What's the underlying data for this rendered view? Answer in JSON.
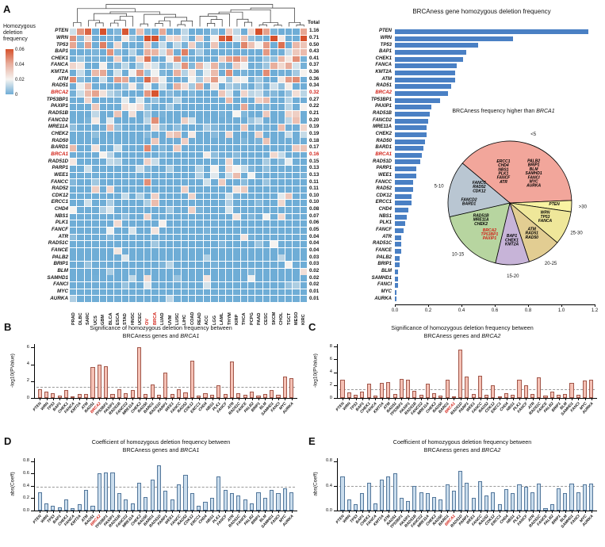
{
  "panel_letters": {
    "a": "A",
    "b": "B",
    "c": "C",
    "d": "D",
    "e": "E"
  },
  "red_axis_genes": [
    "BRCA1",
    "BRCA2"
  ],
  "red_cancer_types": [
    "OV",
    "BRCA"
  ],
  "chart_data": [
    {
      "name": "heatmap",
      "type": "heatmap",
      "legend_title": "Homozygous deletion frequency",
      "legend_ticks": [
        "0.06",
        "0.04",
        "0.02",
        "0"
      ],
      "total_header": "Total",
      "rows": [
        "PTEN",
        "WRN",
        "TP53",
        "BAP1",
        "CHEK1",
        "FANCA",
        "KMT2A",
        "ATM",
        "RAD51",
        "BRCA2",
        "TP53BP1",
        "PAXIP1",
        "RAD51B",
        "FANCD2",
        "MRE11A",
        "CHEK2",
        "RAD50",
        "BARD1",
        "BRCA1",
        "RAD51D",
        "PARP1",
        "WEE1",
        "FANCC",
        "RAD52",
        "CDK12",
        "ERCC1",
        "CHD4",
        "NBS1",
        "PLK1",
        "FANCF",
        "ATR",
        "RAD51C",
        "FANCE",
        "PALB2",
        "BRIP1",
        "BLM",
        "SAMHD1",
        "FANCI",
        "MYC",
        "AURKA"
      ],
      "columns": [
        "PRAD",
        "DLBC",
        "SARC",
        "UCS",
        "GBM",
        "BLCA",
        "ESCA",
        "STAD",
        "HNSC",
        "UCEC",
        "OV",
        "BRCA",
        "LUAD",
        "UVM",
        "LUSC",
        "LIHC",
        "COAD",
        "READ",
        "ACC",
        "LGG",
        "LAML",
        "THYM",
        "KIRP",
        "THCA",
        "PCPG",
        "PAAD",
        "CESC",
        "SKCM",
        "CHOL",
        "TGCT",
        "MESO",
        "KIRC"
      ],
      "row_totals": [
        1.16,
        0.71,
        0.5,
        0.43,
        0.41,
        0.37,
        0.36,
        0.36,
        0.34,
        0.32,
        0.27,
        0.22,
        0.21,
        0.2,
        0.19,
        0.19,
        0.18,
        0.17,
        0.16,
        0.15,
        0.13,
        0.13,
        0.11,
        0.11,
        0.1,
        0.1,
        0.08,
        0.07,
        0.06,
        0.05,
        0.04,
        0.04,
        0.04,
        0.03,
        0.03,
        0.02,
        0.02,
        0.02,
        0.01,
        0.01
      ],
      "color_low": "#6fadd6",
      "color_mid": "#f6f4f1",
      "color_high": "#d6512c",
      "value_range": [
        0,
        0.06
      ]
    },
    {
      "name": "freq_bar",
      "type": "bar",
      "orientation": "horizontal",
      "title": "BRCAness gene homozygous deletion frequency",
      "categories": [
        "PTEN",
        "WRN",
        "TP53",
        "BAP1",
        "CHEK1",
        "FANCA",
        "KMT2A",
        "ATM",
        "RAD51",
        "BRCA2",
        "TP53BP1",
        "PAXIP1",
        "RAD51B",
        "FANCD2",
        "MRE11A",
        "CHEK2",
        "RAD50",
        "BARD1",
        "BRCA1",
        "RAD51D",
        "PARP1",
        "WEE1",
        "FANCC",
        "RAD52",
        "CDK12",
        "ERCC1",
        "CHD4",
        "NBS1",
        "PLK1",
        "FANCF",
        "ATR",
        "RAD51C",
        "FANCE",
        "PALB2",
        "BRIP1",
        "BLM",
        "SAMHD1",
        "FANCI",
        "MYC",
        "AURKA"
      ],
      "values": [
        1.16,
        0.71,
        0.5,
        0.43,
        0.41,
        0.37,
        0.36,
        0.36,
        0.34,
        0.32,
        0.27,
        0.22,
        0.21,
        0.2,
        0.19,
        0.19,
        0.18,
        0.17,
        0.16,
        0.15,
        0.13,
        0.13,
        0.11,
        0.11,
        0.1,
        0.1,
        0.08,
        0.07,
        0.06,
        0.05,
        0.04,
        0.04,
        0.04,
        0.03,
        0.03,
        0.02,
        0.02,
        0.02,
        0.01,
        0.01
      ],
      "xlim": [
        0,
        1.2
      ],
      "x_ticks": [
        0,
        0.2,
        0.4,
        0.6,
        0.8,
        1.0,
        1.2
      ],
      "bar_color": "#4a80c4"
    },
    {
      "name": "pie",
      "type": "pie",
      "title_prefix": "BRCAness  frequency higher than",
      "title_gene": "BRCA1",
      "start_angle": -50,
      "red_genes": [
        "BRCA2",
        "TP53BP1",
        "PAXIP1"
      ],
      "slices": [
        {
          "bin": "<5",
          "count": 13,
          "color": "#f2a69b",
          "blocks": [
            {
              "genes": [
                "ERCC1",
                "CHD4",
                "NBS1",
                "PLK1",
                "FANCF",
                "ATR"
              ],
              "angle": -12,
              "r": 0.5
            },
            {
              "genes": [
                "PALB2",
                "BRIP1",
                "BLM",
                "SAMHD1",
                "FANCI",
                "MYC",
                "AURKA"
              ],
              "angle": 40,
              "r": 0.6
            }
          ]
        },
        {
          "bin": ">30",
          "count": 1,
          "color": "#f9f3a2",
          "blocks": [
            {
              "genes": [
                "PTEN"
              ],
              "angle": 93,
              "r": 0.72
            }
          ]
        },
        {
          "bin": "25-30",
          "count": 3,
          "color": "#efe79a",
          "blocks": [
            {
              "genes": [
                "WRN",
                "TP53",
                "FANCA"
              ],
              "angle": 113,
              "r": 0.62
            }
          ]
        },
        {
          "bin": "20-25",
          "count": 3,
          "color": "#e2cd92",
          "blocks": [
            {
              "genes": [
                "ATM",
                "RAD51",
                "RAD50"
              ],
              "angle": 145,
              "r": 0.62
            }
          ]
        },
        {
          "bin": "15-20",
          "count": 3,
          "color": "#c7b4d8",
          "blocks": [
            {
              "genes": [
                "BAP1",
                "CHEK1",
                "KMT2A"
              ],
              "angle": 177,
              "r": 0.62
            }
          ]
        },
        {
          "bin": "10-15",
          "count": 6,
          "color": "#b7d5a0",
          "blocks": [
            {
              "genes": [
                "BRCA2",
                "TP53BP1",
                "PAXIP1"
              ],
              "angle": 212,
              "r": 0.62
            },
            {
              "genes": [
                "RAD51B",
                "MRE11A",
                "CHEK2"
              ],
              "angle": 238,
              "r": 0.55
            }
          ]
        },
        {
          "bin": "5-10",
          "count": 5,
          "color": "#b9c6d2",
          "blocks": [
            {
              "genes": [
                "FANCD2",
                "BARD1"
              ],
              "angle": 270,
              "r": 0.66
            },
            {
              "genes": [
                "FANCC",
                "RAD52",
                "CDK12"
              ],
              "angle": 296,
              "r": 0.55
            }
          ]
        }
      ]
    },
    {
      "name": "sig_brca1",
      "type": "bar",
      "panel": "B",
      "title_prefix": "Significance of homozygous deletion frequency between",
      "title_sub": "BRCAness genes and",
      "title_gene": "BRCA1",
      "ylabel": "-log10(PValue)",
      "y_ticks": [
        0,
        2,
        4,
        6
      ],
      "ylim": [
        0,
        6.4
      ],
      "threshold": 1.3,
      "highlight_gene": "BRCA2",
      "bar_fill": "#f5c1b5",
      "bar_stroke": "#a2574a",
      "categories": [
        "PTEN",
        "WRN",
        "TP53",
        "BAP1",
        "CHEK1",
        "FANCA",
        "KMT2A",
        "ATM",
        "RAD51",
        "BRCA2",
        "TP53BP1",
        "PAXIP1",
        "RAD51B",
        "FANCD2",
        "MRE11A",
        "CHEK2",
        "RAD50",
        "BARD1",
        "RAD51D",
        "PARP1",
        "WEE1",
        "FANCC",
        "RAD52",
        "CDK12",
        "ERCC1",
        "CHD4",
        "NBS1",
        "PLK1",
        "FANCF",
        "ATR",
        "RAD51C",
        "FANCE",
        "PALB2",
        "BRIP1",
        "BLM",
        "SAMHD1",
        "FANCI",
        "MYC",
        "AURKA"
      ],
      "values": [
        1.05,
        0.8,
        0.55,
        0.3,
        0.9,
        0.2,
        0.45,
        0.5,
        3.7,
        4.0,
        3.8,
        0.45,
        1.05,
        0.6,
        0.9,
        6.0,
        0.5,
        1.6,
        0.35,
        3.0,
        0.45,
        1.0,
        0.7,
        4.4,
        0.3,
        0.6,
        0.4,
        1.5,
        0.5,
        4.3,
        0.6,
        0.4,
        0.8,
        0.3,
        0.5,
        0.9,
        0.4,
        2.5,
        2.4
      ]
    },
    {
      "name": "sig_brca2",
      "type": "bar",
      "panel": "C",
      "title_prefix": "Significance of homozygous deletion frequency between",
      "title_sub": "BRCAness genes and",
      "title_gene": "BRCA2",
      "ylabel": "-log10(PValue)",
      "y_ticks": [
        0,
        2,
        4,
        6,
        8
      ],
      "ylim": [
        0,
        8.4
      ],
      "threshold": 1.3,
      "highlight_gene": "BRCA1",
      "bar_fill": "#f5c1b5",
      "bar_stroke": "#a2574a",
      "categories": [
        "PTEN",
        "WRN",
        "TP53",
        "BAP1",
        "CHEK1",
        "FANCA",
        "KMT2A",
        "ATM",
        "RAD51",
        "TP53BP1",
        "PAXIP1",
        "RAD51B",
        "FANCD2",
        "MRE11A",
        "CHEK2",
        "RAD50",
        "BARD1",
        "BRCA1",
        "RAD51D",
        "PARP1",
        "WEE1",
        "FANCC",
        "RAD52",
        "CDK12",
        "ERCC1",
        "CHD4",
        "NBS1",
        "PLK1",
        "FANCF",
        "ATR",
        "RAD51C",
        "FANCE",
        "PALB2",
        "BRIP1",
        "BLM",
        "SAMHD1",
        "FANCI",
        "MYC",
        "AURKA"
      ],
      "values": [
        2.8,
        0.9,
        0.5,
        1.0,
        2.2,
        0.4,
        2.4,
        2.5,
        0.6,
        3.0,
        2.9,
        1.1,
        0.5,
        2.2,
        0.8,
        0.4,
        2.9,
        0.3,
        7.5,
        3.3,
        0.6,
        3.4,
        0.5,
        2.0,
        0.3,
        0.7,
        0.5,
        2.8,
        2.0,
        0.6,
        3.2,
        0.4,
        1.0,
        0.5,
        0.6,
        2.4,
        0.5,
        2.7,
        2.8
      ]
    },
    {
      "name": "coef_brca1",
      "type": "bar",
      "panel": "D",
      "title_prefix": "Coefficient of homozygous deletion frequency between",
      "title_sub": "BRCAness genes and",
      "title_gene": "BRCA1",
      "ylabel": "abs(Coeff)",
      "y_ticks": [
        "0.0",
        "0.2",
        "0.4",
        "0.6",
        "0.8"
      ],
      "ylim": [
        0,
        0.85
      ],
      "threshold": 0.38,
      "highlight_gene": "BRCA2",
      "bar_fill": "#cadded",
      "bar_stroke": "#53779b",
      "categories": [
        "PTEN",
        "WRN",
        "TP53",
        "BAP1",
        "CHEK1",
        "FANCA",
        "KMT2A",
        "ATM",
        "RAD51",
        "BRCA2",
        "TP53BP1",
        "PAXIP1",
        "RAD51B",
        "FANCD2",
        "MRE11A",
        "CHEK2",
        "RAD50",
        "BARD1",
        "RAD51D",
        "PARP1",
        "WEE1",
        "FANCC",
        "RAD52",
        "CDK12",
        "ERCC1",
        "CHD4",
        "NBS1",
        "PLK1",
        "FANCF",
        "ATR",
        "RAD51C",
        "FANCE",
        "PALB2",
        "BRIP1",
        "BLM",
        "SAMHD1",
        "FANCI",
        "MYC",
        "AURKA"
      ],
      "values": [
        0.3,
        0.12,
        0.08,
        0.05,
        0.18,
        0.04,
        0.1,
        0.33,
        0.08,
        0.6,
        0.62,
        0.62,
        0.28,
        0.18,
        0.12,
        0.45,
        0.22,
        0.5,
        0.73,
        0.32,
        0.18,
        0.42,
        0.58,
        0.28,
        0.08,
        0.14,
        0.2,
        0.56,
        0.33,
        0.28,
        0.24,
        0.18,
        0.12,
        0.3,
        0.2,
        0.34,
        0.28,
        0.36,
        0.3
      ]
    },
    {
      "name": "coef_brca2",
      "type": "bar",
      "panel": "E",
      "title_prefix": "Coefficient of homozygous deletion frequency between",
      "title_sub": "BRCAness genes and",
      "title_gene": "BRCA2",
      "ylabel": "abs(Coeff)",
      "y_ticks": [
        "0.0",
        "0.4",
        "0.8"
      ],
      "ylim": [
        0,
        0.85
      ],
      "threshold": 0.4,
      "highlight_gene": "BRCA1",
      "bar_fill": "#cadded",
      "bar_stroke": "#53779b",
      "categories": [
        "PTEN",
        "WRN",
        "TP53",
        "BAP1",
        "CHEK1",
        "FANCA",
        "KMT2A",
        "ATM",
        "RAD51",
        "TP53BP1",
        "PAXIP1",
        "RAD51B",
        "FANCD2",
        "MRE11A",
        "CHEK2",
        "RAD50",
        "BARD1",
        "BRCA1",
        "RAD51D",
        "PARP1",
        "WEE1",
        "FANCC",
        "RAD52",
        "CDK12",
        "ERCC1",
        "CHD4",
        "NBS1",
        "PLK1",
        "FANCF",
        "ATR",
        "RAD51C",
        "FANCE",
        "PALB2",
        "BRIP1",
        "BLM",
        "SAMHD1",
        "FANCI",
        "MYC",
        "AURKA"
      ],
      "values": [
        0.55,
        0.18,
        0.1,
        0.28,
        0.45,
        0.12,
        0.5,
        0.55,
        0.6,
        0.2,
        0.15,
        0.4,
        0.3,
        0.28,
        0.22,
        0.18,
        0.42,
        0.32,
        0.65,
        0.45,
        0.2,
        0.48,
        0.25,
        0.3,
        0.1,
        0.35,
        0.28,
        0.42,
        0.38,
        0.3,
        0.44,
        0.04,
        0.1,
        0.36,
        0.28,
        0.44,
        0.3,
        0.42,
        0.44
      ]
    }
  ]
}
